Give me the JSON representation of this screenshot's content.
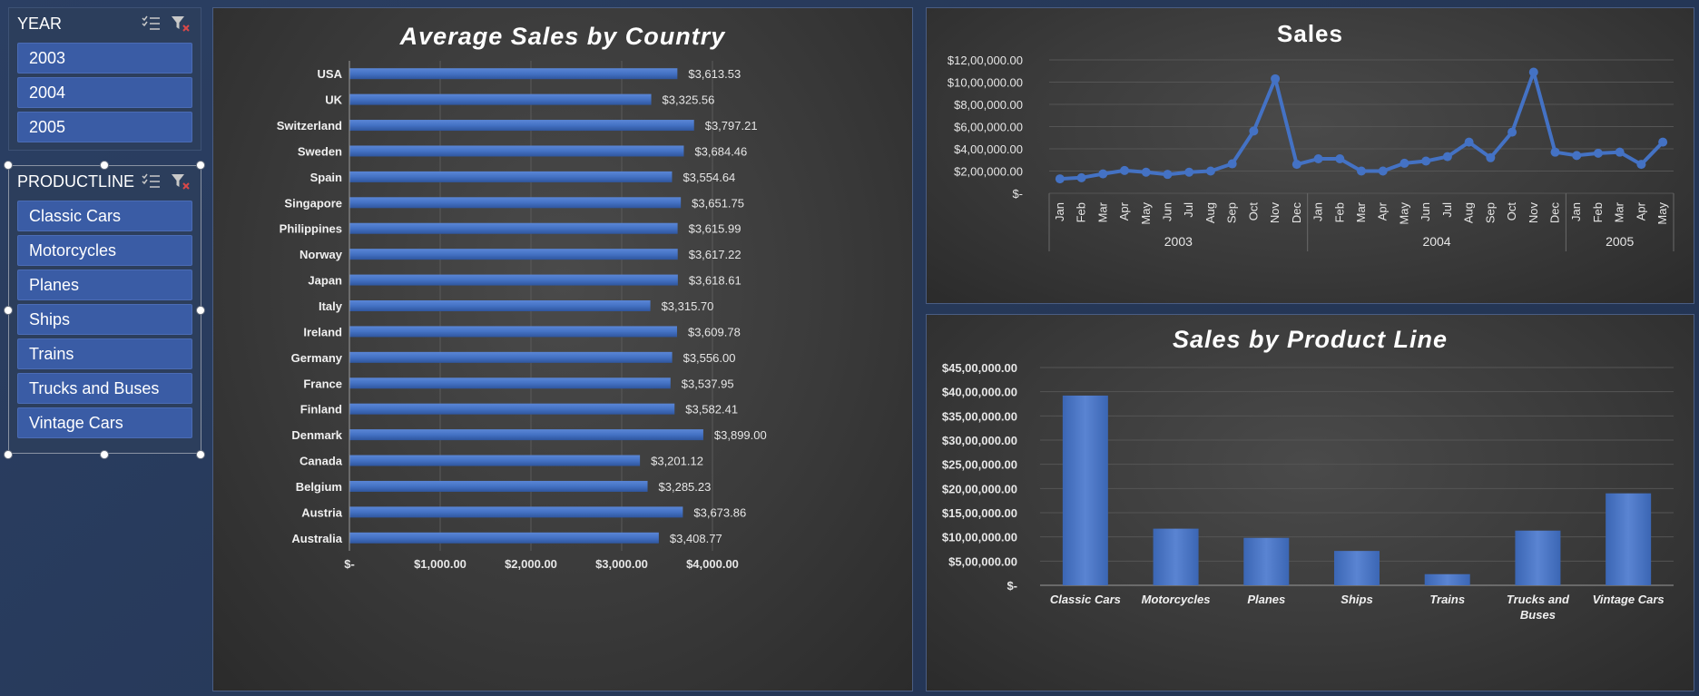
{
  "slicers": {
    "year": {
      "title": "YEAR",
      "items": [
        "2003",
        "2004",
        "2005"
      ]
    },
    "productline": {
      "title": "PRODUCTLINE",
      "items": [
        "Classic Cars",
        "Motorcycles",
        "Planes",
        "Ships",
        "Trains",
        "Trucks and Buses",
        "Vintage Cars"
      ]
    }
  },
  "icons": {
    "multi_select": "multi-select-icon",
    "clear_filter": "clear-filter-icon"
  },
  "colors": {
    "bar": "#4472c4",
    "background": "#263858",
    "slicer_item": "#3a5ca5"
  },
  "chart_data": [
    {
      "type": "bar",
      "orientation": "horizontal",
      "title": "Average Sales by Country",
      "categories": [
        "USA",
        "UK",
        "Switzerland",
        "Sweden",
        "Spain",
        "Singapore",
        "Philippines",
        "Norway",
        "Japan",
        "Italy",
        "Ireland",
        "Germany",
        "France",
        "Finland",
        "Denmark",
        "Canada",
        "Belgium",
        "Austria",
        "Australia"
      ],
      "values": [
        3613.53,
        3325.56,
        3797.21,
        3684.46,
        3554.64,
        3651.75,
        3615.99,
        3617.22,
        3618.61,
        3315.7,
        3609.78,
        3556.0,
        3537.95,
        3582.41,
        3899.0,
        3201.12,
        3285.23,
        3673.86,
        3408.77
      ],
      "data_labels": [
        "$3,613.53",
        "$3,325.56",
        "$3,797.21",
        "$3,684.46",
        "$3,554.64",
        "$3,651.75",
        "$3,615.99",
        "$3,617.22",
        "$3,618.61",
        "$3,315.70",
        "$3,609.78",
        "$3,556.00",
        "$3,537.95",
        "$3,582.41",
        "$3,899.00",
        "$3,201.12",
        "$3,285.23",
        "$3,673.86",
        "$3,408.77"
      ],
      "xlim": [
        0,
        4000
      ],
      "xticks": [
        0,
        1000,
        2000,
        3000,
        4000
      ],
      "xtick_labels": [
        "$-",
        "$1,000.00",
        "$2,000.00",
        "$3,000.00",
        "$4,000.00"
      ],
      "grid": true
    },
    {
      "type": "line",
      "title": "Sales",
      "x": [
        "Jan",
        "Feb",
        "Mar",
        "Apr",
        "May",
        "Jun",
        "Jul",
        "Aug",
        "Sep",
        "Oct",
        "Nov",
        "Dec",
        "Jan",
        "Feb",
        "Mar",
        "Apr",
        "May",
        "Jun",
        "Jul",
        "Aug",
        "Sep",
        "Oct",
        "Nov",
        "Dec",
        "Jan",
        "Feb",
        "Mar",
        "Apr",
        "May"
      ],
      "year_groups": [
        {
          "label": "2003",
          "count": 12
        },
        {
          "label": "2004",
          "count": 12
        },
        {
          "label": "2005",
          "count": 5
        }
      ],
      "values": [
        130000,
        140000,
        175000,
        205000,
        190000,
        170000,
        190000,
        200000,
        265000,
        560000,
        1030000,
        260000,
        310000,
        310000,
        200000,
        200000,
        270000,
        290000,
        330000,
        460000,
        320000,
        550000,
        1090000,
        370000,
        340000,
        360000,
        370000,
        260000,
        460000
      ],
      "ylim": [
        0,
        1200000
      ],
      "yticks": [
        0,
        200000,
        400000,
        600000,
        800000,
        1000000,
        1200000
      ],
      "ytick_labels": [
        "$-",
        "$2,00,000.00",
        "$4,00,000.00",
        "$6,00,000.00",
        "$8,00,000.00",
        "$10,00,000.00",
        "$12,00,000.00"
      ],
      "grid": true
    },
    {
      "type": "bar",
      "title": "Sales by Product Line",
      "categories": [
        "Classic Cars",
        "Motorcycles",
        "Planes",
        "Ships",
        "Trains",
        "Trucks and Buses",
        "Vintage Cars"
      ],
      "category_lines": [
        [
          "Classic Cars"
        ],
        [
          "Motorcycles"
        ],
        [
          "Planes"
        ],
        [
          "Ships"
        ],
        [
          "Trains"
        ],
        [
          "Trucks and",
          "Buses"
        ],
        [
          "Vintage Cars"
        ]
      ],
      "values": [
        3920000,
        1170000,
        980000,
        710000,
        230000,
        1130000,
        1900000
      ],
      "ylim": [
        0,
        4500000
      ],
      "yticks": [
        0,
        500000,
        1000000,
        1500000,
        2000000,
        2500000,
        3000000,
        3500000,
        4000000,
        4500000
      ],
      "ytick_labels": [
        "$-",
        "$5,00,000.00",
        "$10,00,000.00",
        "$15,00,000.00",
        "$20,00,000.00",
        "$25,00,000.00",
        "$30,00,000.00",
        "$35,00,000.00",
        "$40,00,000.00",
        "$45,00,000.00"
      ],
      "grid": true
    }
  ]
}
